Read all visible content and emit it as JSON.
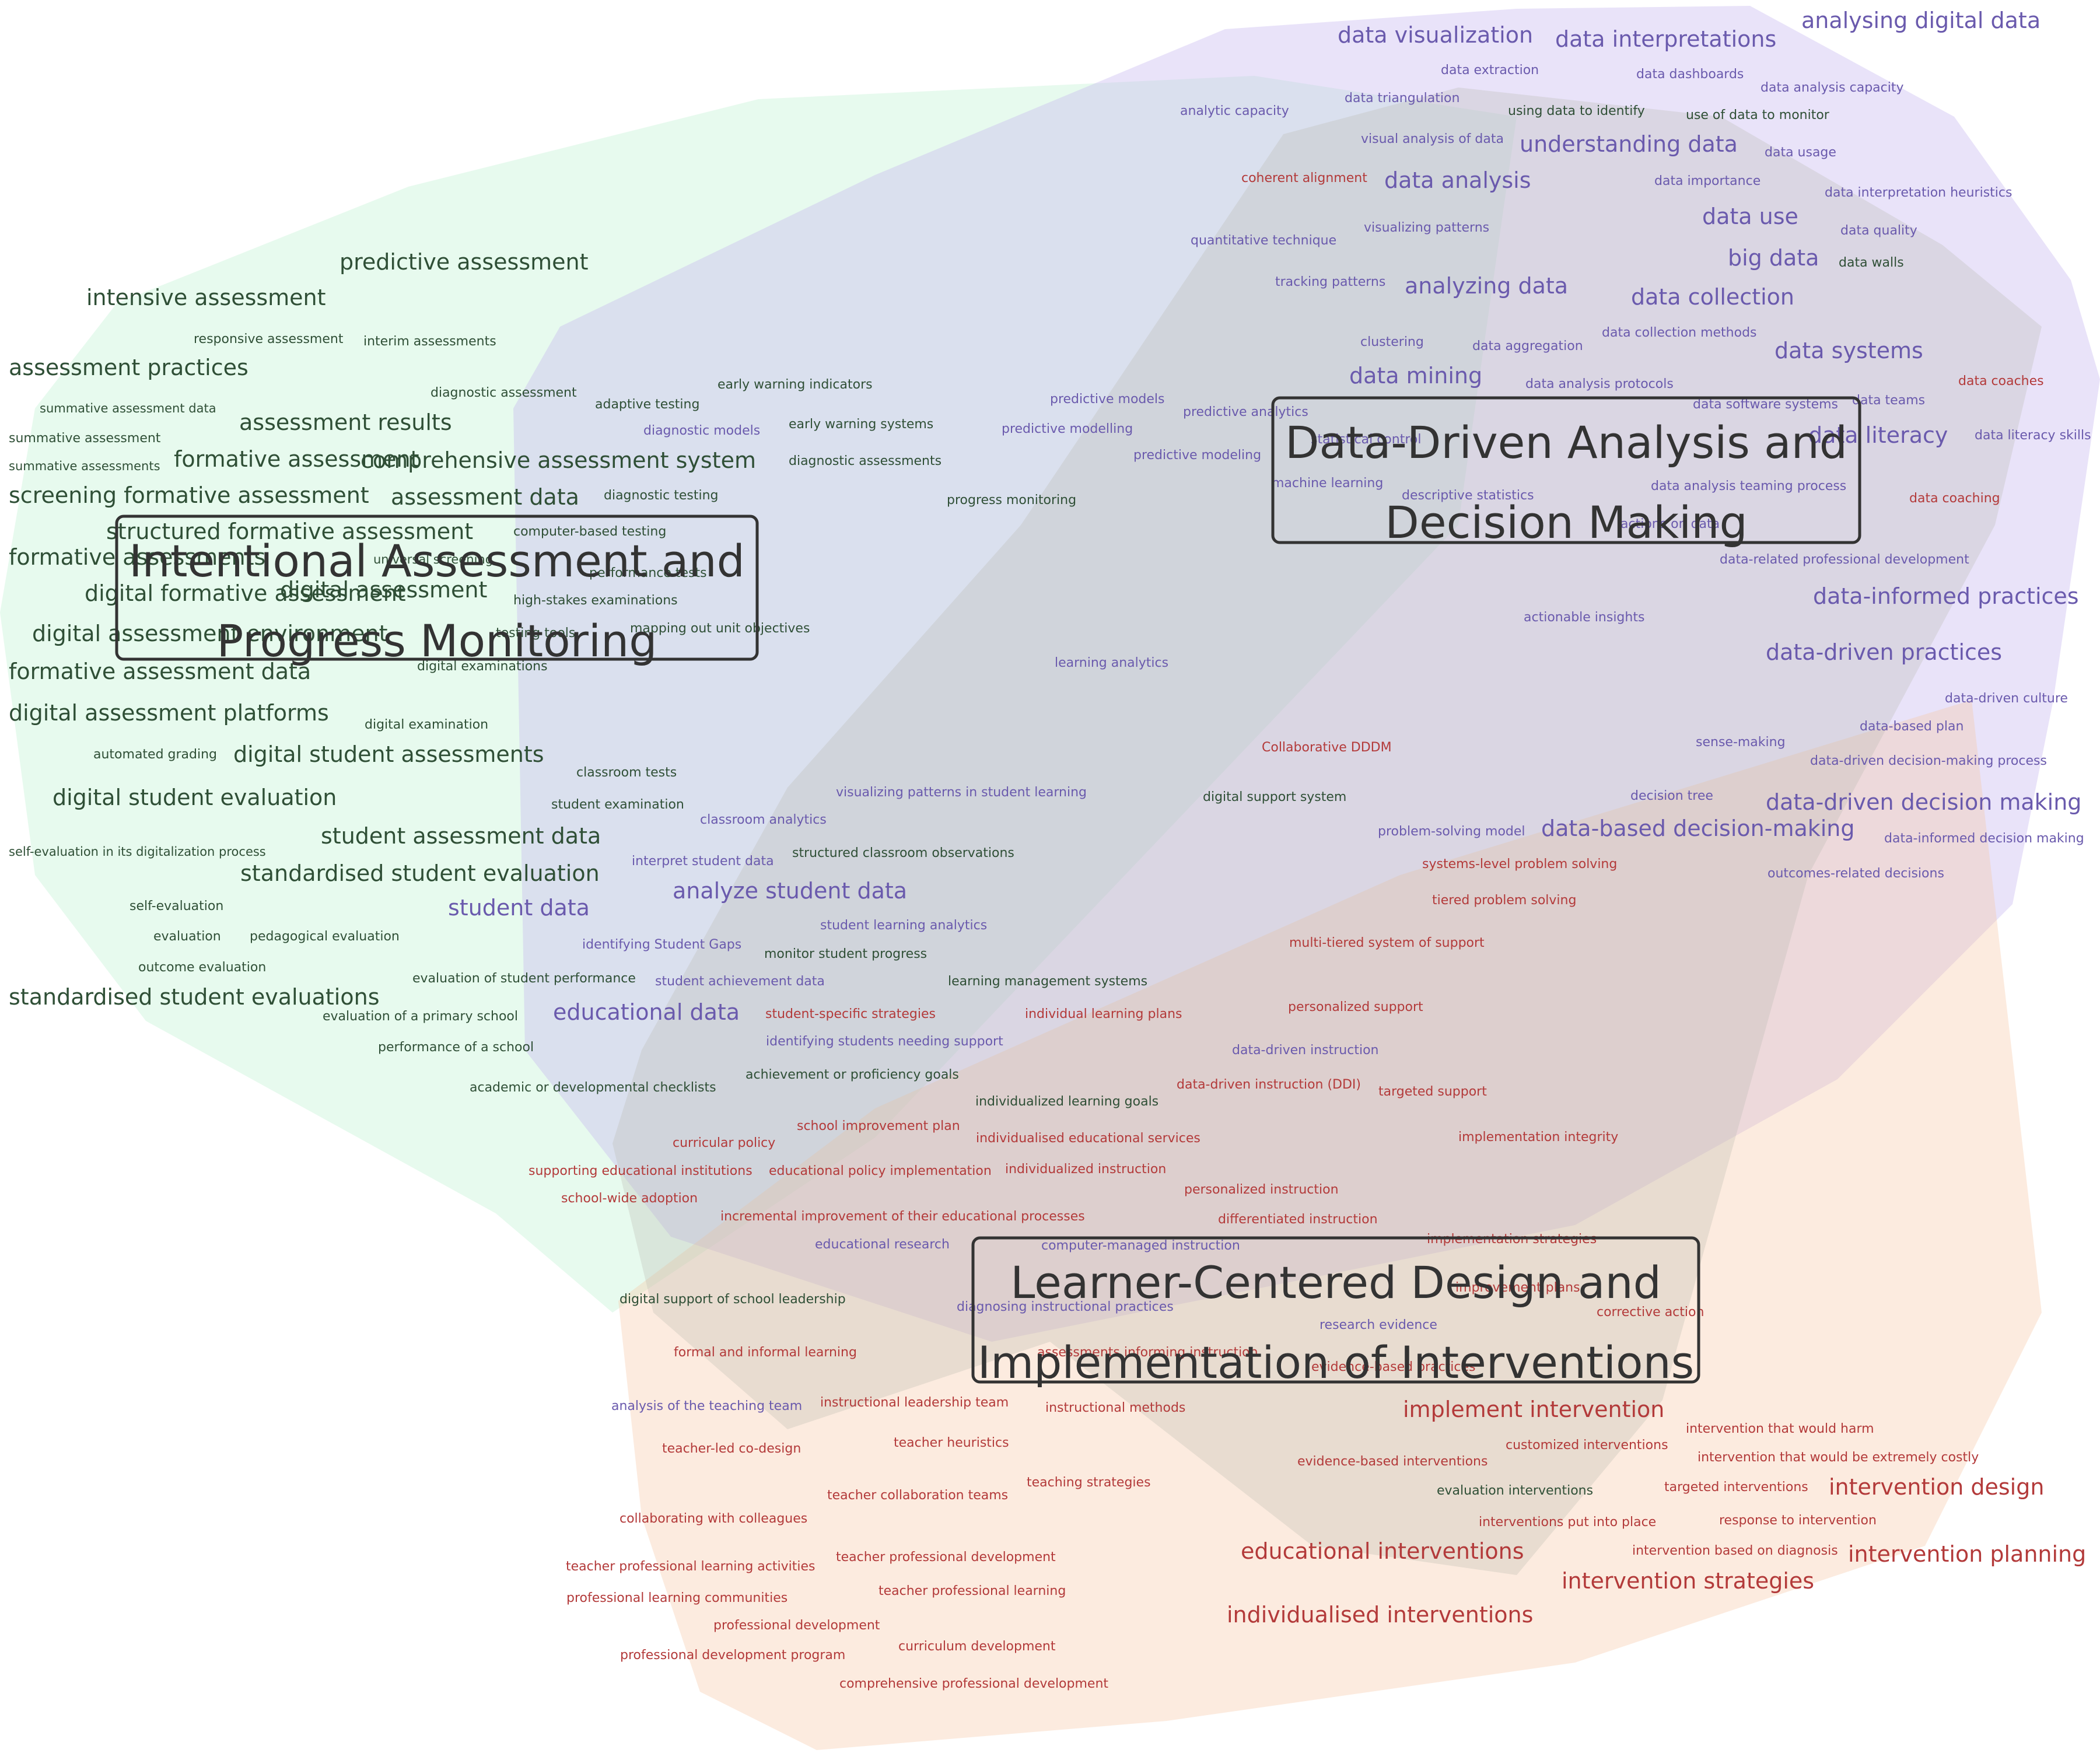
{
  "colors": {
    "green": "#2f4f36",
    "purple": "#6a5aad",
    "red": "#b33a3a",
    "headline": "#333333"
  },
  "regions": [
    {
      "id": "assessment",
      "fill": "#b9f0cf",
      "opacity": 0.35
    },
    {
      "id": "data",
      "fill": "#c6b6ef",
      "opacity": 0.38
    },
    {
      "id": "interventions",
      "fill": "#f7c6a3",
      "opacity": 0.35
    },
    {
      "id": "core",
      "fill": "#b8b8b0",
      "opacity": 0.3
    }
  ],
  "headers": [
    {
      "id": "assessment",
      "line1": "Intentional Assessment and",
      "line2": "Progress Monitoring"
    },
    {
      "id": "data",
      "line1": "Data-Driven Analysis and",
      "line2": "Decision Making"
    },
    {
      "id": "interventions",
      "line1": "Learner-Centered Design and",
      "line2": "Implementation of Interventions"
    }
  ],
  "green_terms": [
    "predictive assessment",
    "intensive assessment",
    "responsive assessment",
    "interim assessments",
    "assessment practices",
    "diagnostic assessment",
    "adaptive testing",
    "early warning indicators",
    "summative assessment data",
    "assessment results",
    "early warning systems",
    "summative assessment",
    "formative assessment",
    "comprehensive assessment system",
    "diagnostic assessments",
    "summative assessments",
    "screening formative assessment",
    "assessment data",
    "diagnostic testing",
    "progress monitoring",
    "structured formative assessment",
    "computer-based testing",
    "formative assessments",
    "universal screening",
    "performance tests",
    "digital formative assessment",
    "digital assessment",
    "high-stakes examinations",
    "digital assessment environment",
    "testing tools",
    "mapping out unit objectives",
    "formative assessment data",
    "digital examinations",
    "digital assessment platforms",
    "digital examination",
    "automated grading",
    "digital student assessments",
    "classroom tests",
    "digital student evaluation",
    "student examination",
    "student assessment data",
    "self-evaluation in its digitalization process",
    "structured classroom observations",
    "standardised student evaluation",
    "self-evaluation",
    "evaluation",
    "pedagogical evaluation",
    "monitor student progress",
    "outcome evaluation",
    "evaluation of student performance",
    "learning management systems",
    "standardised student evaluations",
    "evaluation of a primary school",
    "performance of a school",
    "achievement or proficiency goals",
    "academic or developmental checklists",
    "individualized learning goals",
    "digital support system",
    "digital support of school leadership",
    "evaluation interventions",
    "using data to identify",
    "use of data to monitor",
    "data walls"
  ],
  "purple_terms": [
    "data visualization",
    "data interpretations",
    "analysing digital data",
    "data extraction",
    "data dashboards",
    "data analysis capacity",
    "analytic capacity",
    "data triangulation",
    "visual analysis of data",
    "understanding data",
    "data usage",
    "data analysis",
    "data importance",
    "data interpretation heuristics",
    "data use",
    "quantitative technique",
    "visualizing patterns",
    "data quality",
    "big data",
    "tracking patterns",
    "analyzing data",
    "data collection",
    "data collection methods",
    "clustering",
    "data aggregation",
    "data systems",
    "data mining",
    "data analysis protocols",
    "predictive models",
    "predictive analytics",
    "data software systems",
    "data teams",
    "diagnostic models",
    "predictive modelling",
    "statistical control",
    "data literacy",
    "data literacy skills",
    "predictive modeling",
    "machine learning",
    "descriptive statistics",
    "data analysis teaming process",
    "actions on data",
    "data-informed practices",
    "actionable insights",
    "learning analytics",
    "data-driven practices",
    "data-driven culture",
    "data-based plan",
    "sense-making",
    "data-driven decision-making process",
    "visualizing patterns in student learning",
    "decision tree",
    "data-driven decision making",
    "classroom analytics",
    "problem-solving model",
    "data-based decision-making",
    "data-informed decision making",
    "interpret student data",
    "outcomes-related decisions",
    "analyze student data",
    "student learning analytics",
    "student data",
    "identifying Student Gaps",
    "student achievement data",
    "educational data",
    "identifying students needing support",
    "data-driven instruction",
    "educational research",
    "computer-managed instruction",
    "diagnosing instructional practices",
    "research evidence",
    "analysis of the teaching team",
    "data-related professional development"
  ],
  "red_terms": [
    "coherent alignment",
    "data coaches",
    "data coaching",
    "Collaborative DDDM",
    "systems-level problem solving",
    "tiered problem solving",
    "multi-tiered system of support",
    "student-specific strategies",
    "individual learning plans",
    "personalized support",
    "data-driven instruction (DDI)",
    "targeted support",
    "school improvement plan",
    "individualised educational services",
    "curricular policy",
    "implementation integrity",
    "supporting educational institutions",
    "educational policy implementation",
    "individualized instruction",
    "personalized instruction",
    "school-wide adoption",
    "incremental improvement of their educational processes",
    "differentiated instruction",
    "implementation strategies",
    "improvement plans",
    "corrective action",
    "formal and informal learning",
    "assessments informing instruction",
    "evidence-based practices",
    "instructional leadership team",
    "instructional methods",
    "implement intervention",
    "intervention that would harm",
    "customized interventions",
    "teacher-led co-design",
    "teacher heuristics",
    "intervention that would be extremely costly",
    "evidence-based interventions",
    "targeted interventions",
    "intervention design",
    "teaching strategies",
    "teacher collaboration teams",
    "collaborating with colleagues",
    "interventions put into place",
    "response to intervention",
    "educational interventions",
    "intervention based on diagnosis",
    "intervention planning",
    "teacher professional learning activities",
    "teacher professional development",
    "intervention strategies",
    "professional learning communities",
    "teacher professional learning",
    "professional development",
    "individualised interventions",
    "curriculum development",
    "professional development program",
    "comprehensive professional development"
  ]
}
